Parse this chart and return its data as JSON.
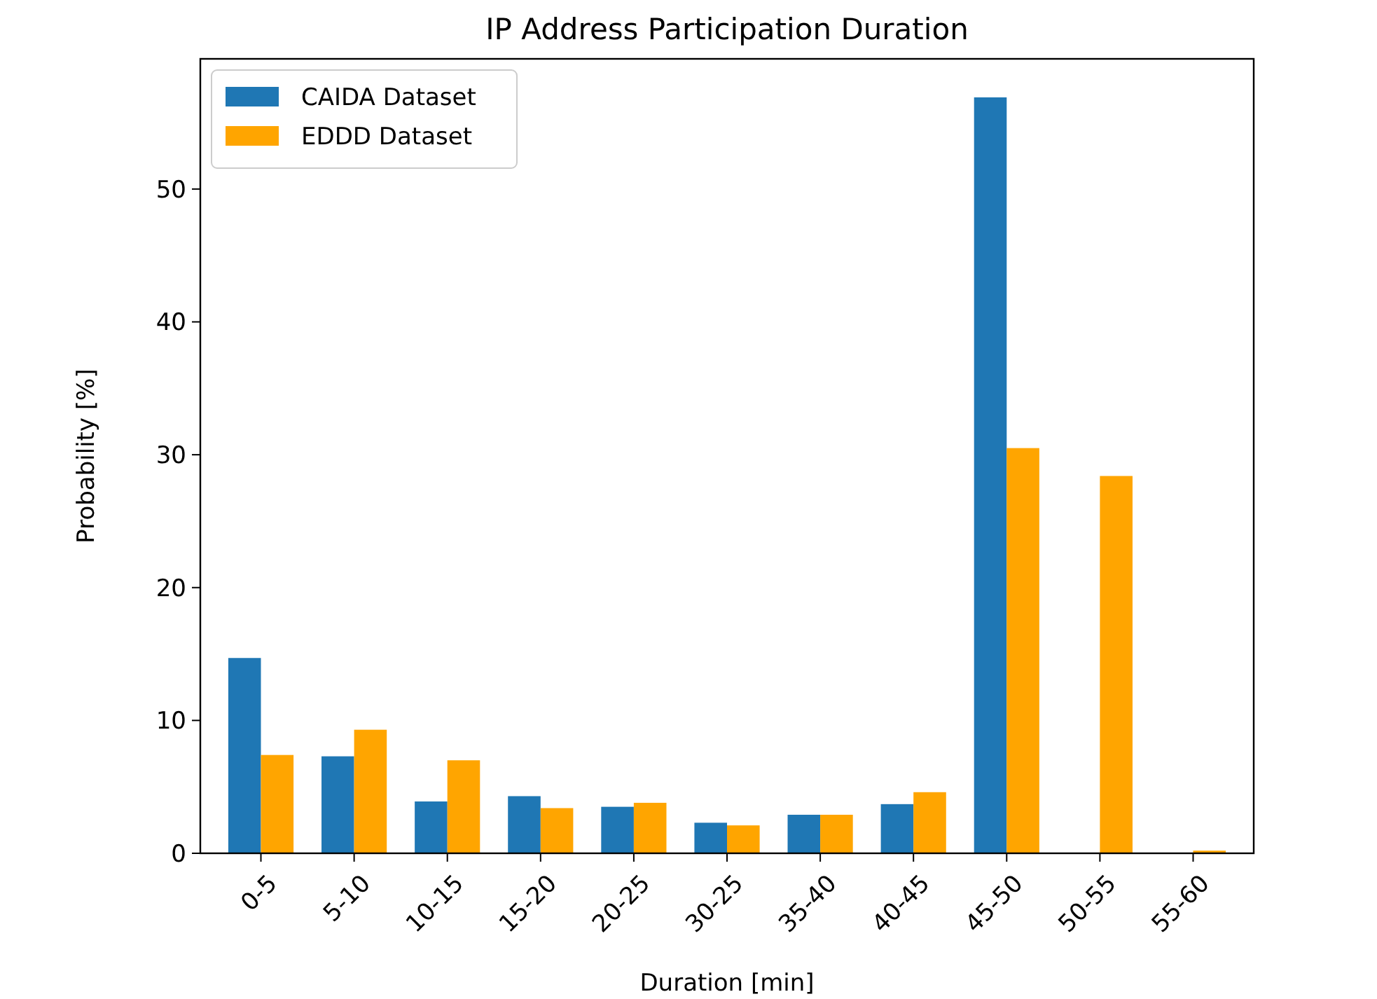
{
  "chart_data": {
    "type": "bar",
    "title": "IP Address Participation Duration",
    "xlabel": "Duration [min]",
    "ylabel": "Probability [%]",
    "categories": [
      "0-5",
      "5-10",
      "10-15",
      "15-20",
      "20-25",
      "30-25",
      "35-40",
      "40-45",
      "45-50",
      "50-55",
      "55-60"
    ],
    "series": [
      {
        "name": "CAIDA Dataset",
        "color": "#1f77b4",
        "values": [
          14.7,
          7.3,
          3.9,
          4.3,
          3.5,
          2.3,
          2.9,
          3.7,
          56.9,
          0,
          0
        ]
      },
      {
        "name": "EDDD Dataset",
        "color": "#ffa500",
        "values": [
          7.4,
          9.3,
          7.0,
          3.4,
          3.8,
          2.1,
          2.9,
          4.6,
          30.5,
          28.4,
          0.2
        ]
      }
    ],
    "ylim": [
      0,
      59.8
    ],
    "yticks": [
      0,
      10,
      20,
      30,
      40,
      50
    ],
    "legend": "top left",
    "grid": false
  }
}
